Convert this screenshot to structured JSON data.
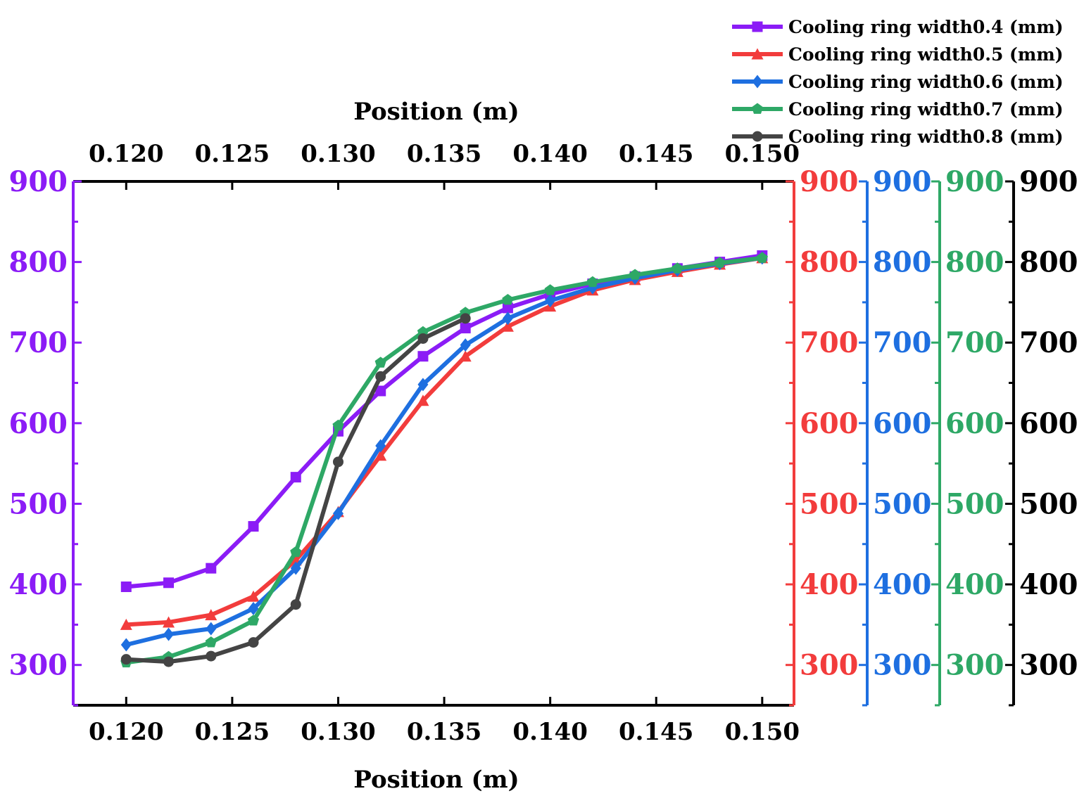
{
  "chart_data": {
    "type": "line",
    "x_title_top": "Position (m)",
    "x_title_bottom": "Position (m)",
    "xlim": [
      0.1175,
      0.1515
    ],
    "ylim": [
      250,
      900
    ],
    "x_ticks": [
      "0.120",
      "0.125",
      "0.130",
      "0.135",
      "0.140",
      "0.145",
      "0.150"
    ],
    "x_tick_values": [
      0.12,
      0.125,
      0.13,
      0.135,
      0.14,
      0.145,
      0.15
    ],
    "y_ticks": [
      "300",
      "400",
      "500",
      "600",
      "700",
      "800",
      "900"
    ],
    "y_tick_values": [
      300,
      400,
      500,
      600,
      700,
      800,
      900
    ],
    "legend_position": "top-right",
    "series": [
      {
        "name": "Cooling ring width0.4 (mm)",
        "color": "#8B1CF6",
        "marker": "square",
        "axis": "left",
        "x": [
          0.12,
          0.122,
          0.124,
          0.126,
          0.128,
          0.13,
          0.132,
          0.134,
          0.136,
          0.138,
          0.14,
          0.142,
          0.144,
          0.146,
          0.148,
          0.15
        ],
        "y": [
          397,
          402,
          420,
          472,
          533,
          590,
          640,
          683,
          718,
          743,
          760,
          773,
          782,
          792,
          800,
          808
        ]
      },
      {
        "name": "Cooling ring width0.5 (mm)",
        "color": "#F23C3C",
        "marker": "triangle",
        "axis": "right-1",
        "x": [
          0.12,
          0.122,
          0.124,
          0.126,
          0.128,
          0.13,
          0.132,
          0.134,
          0.136,
          0.138,
          0.14,
          0.142,
          0.144,
          0.146,
          0.148,
          0.15
        ],
        "y": [
          350,
          353,
          362,
          385,
          430,
          490,
          560,
          628,
          683,
          720,
          745,
          765,
          778,
          788,
          797,
          805
        ]
      },
      {
        "name": "Cooling ring width0.6 (mm)",
        "color": "#1E6FE0",
        "marker": "diamond",
        "axis": "right-2",
        "x": [
          0.12,
          0.122,
          0.124,
          0.126,
          0.128,
          0.13,
          0.132,
          0.134,
          0.136,
          0.138,
          0.14,
          0.142,
          0.144,
          0.146,
          0.148,
          0.15
        ],
        "y": [
          325,
          338,
          345,
          370,
          420,
          488,
          572,
          648,
          697,
          730,
          752,
          768,
          780,
          790,
          798,
          805
        ]
      },
      {
        "name": "Cooling ring width0.7 (mm)",
        "color": "#2EA866",
        "marker": "pentagon",
        "axis": "right-3",
        "x": [
          0.12,
          0.122,
          0.124,
          0.126,
          0.128,
          0.13,
          0.132,
          0.134,
          0.136,
          0.138,
          0.14,
          0.142,
          0.144,
          0.146,
          0.148,
          0.15
        ],
        "y": [
          303,
          310,
          328,
          355,
          440,
          597,
          675,
          713,
          737,
          753,
          765,
          775,
          784,
          792,
          799,
          805
        ]
      },
      {
        "name": "Cooling ring width0.8 (mm)",
        "color": "#444444",
        "marker": "circle",
        "axis": "right-4",
        "x": [
          0.12,
          0.122,
          0.124,
          0.126,
          0.128,
          0.13,
          0.132,
          0.134,
          0.136
        ],
        "y": [
          307,
          304,
          311,
          328,
          375,
          552,
          658,
          705,
          730
        ]
      }
    ],
    "y_axes": [
      {
        "id": "left",
        "color": "#8B1CF6",
        "side": "left"
      },
      {
        "id": "right-1",
        "color": "#F23C3C",
        "side": "right"
      },
      {
        "id": "right-2",
        "color": "#1E6FE0",
        "side": "right"
      },
      {
        "id": "right-3",
        "color": "#2EA866",
        "side": "right"
      },
      {
        "id": "right-4",
        "color": "#000000",
        "side": "right"
      }
    ]
  }
}
